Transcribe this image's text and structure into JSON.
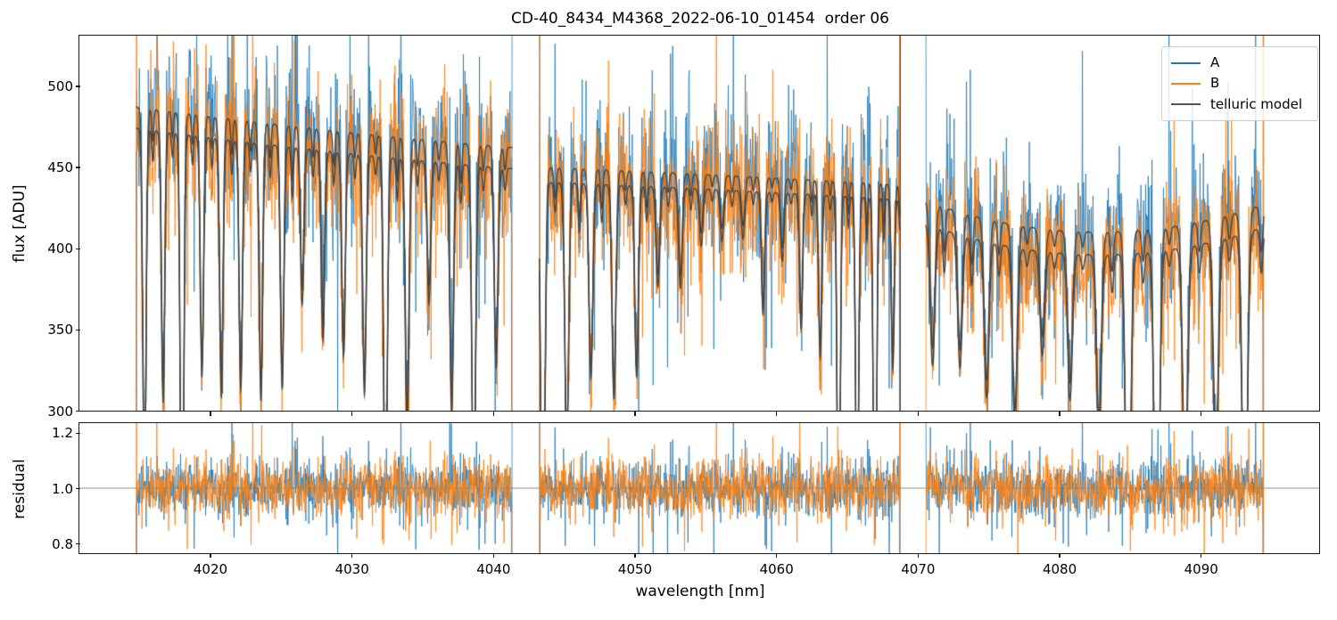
{
  "chart_data": {
    "type": "line",
    "title": "CD-40_8434_M4368_2022-06-10_01454  order 06",
    "xlabel": "wavelength [nm]",
    "xlim": [
      4010.8,
      4098.4
    ],
    "xticks": [
      {
        "value": 4020,
        "label": "4020"
      },
      {
        "value": 4030,
        "label": "4030"
      },
      {
        "value": 4040,
        "label": "4040"
      },
      {
        "value": 4050,
        "label": "4050"
      },
      {
        "value": 4060,
        "label": "4060"
      },
      {
        "value": 4070,
        "label": "4070"
      },
      {
        "value": 4080,
        "label": "4080"
      },
      {
        "value": 4090,
        "label": "4090"
      }
    ],
    "panels": [
      {
        "name": "flux",
        "ylabel": "flux [ADU]",
        "ylim": [
          300,
          531
        ],
        "yticks": [
          {
            "value": 500,
            "label": "500"
          },
          {
            "value": 450,
            "label": "450"
          },
          {
            "value": 400,
            "label": "400"
          },
          {
            "value": 350,
            "label": "350"
          },
          {
            "value": 300,
            "label": "300"
          }
        ]
      },
      {
        "name": "residual",
        "ylabel": "residual",
        "ylim": [
          0.765,
          1.235
        ],
        "yticks": [
          {
            "value": 1.2,
            "label": "1.2"
          },
          {
            "value": 1.0,
            "label": "1.0"
          },
          {
            "value": 0.8,
            "label": "0.8"
          }
        ],
        "reference_line": {
          "value": 1.0,
          "color": "#8a8a8a"
        }
      }
    ],
    "legend": [
      {
        "label": "A",
        "color": "#1f77b4"
      },
      {
        "label": "B",
        "color": "#ff7f0e"
      },
      {
        "label": "telluric model",
        "color": "#555555"
      }
    ],
    "colors": {
      "series_a": "#1f77b4",
      "series_b": "#ff7f0e",
      "telluric_model": "#454545",
      "axes": "#1a1a1a"
    },
    "spectra": {
      "seed": 20220610,
      "sample_step_nm": 0.03,
      "model_step_nm": 0.02,
      "noise_sigma": 0.05,
      "heavy_tail_prob": 0.09,
      "heavy_tail_mult": 2.5,
      "model_edge_line_nm": 4068.8,
      "segments": [
        {
          "range": [
            4014.8,
            4041.4
          ],
          "flux_start": 487,
          "flux_mid": 473,
          "flux_end": 462,
          "b_offset": -13,
          "line_spacing_start": 1.35,
          "line_spacing_end": 1.6,
          "first_line_offset": 0.55,
          "depth_profile": [
            [
              0,
              1.05
            ],
            [
              0.5,
              0.95
            ],
            [
              1,
              0.78
            ]
          ]
        },
        {
          "range": [
            4043.3,
            4068.8
          ],
          "flux_start": 450,
          "flux_mid": 445,
          "flux_end": 439,
          "b_offset": -9,
          "line_spacing_start": 1.7,
          "line_spacing_end": 1.2,
          "first_line_offset": 0.25,
          "depth_profile": [
            [
              0,
              1.4
            ],
            [
              0.35,
              0.55
            ],
            [
              0.6,
              0.22
            ],
            [
              0.82,
              0.8
            ],
            [
              1,
              1.45
            ]
          ]
        },
        {
          "range": [
            4070.6,
            4094.5
          ],
          "flux_start": 429,
          "flux_mid": 410,
          "flux_end": 427,
          "b_offset": -14,
          "line_spacing_start": 1.9,
          "line_spacing_end": 2.15,
          "first_line_offset": 0.5,
          "depth_profile": [
            [
              0,
              1.2
            ],
            [
              0.3,
              0.85
            ],
            [
              0.7,
              0.9
            ],
            [
              1,
              1.3
            ]
          ]
        }
      ]
    }
  }
}
